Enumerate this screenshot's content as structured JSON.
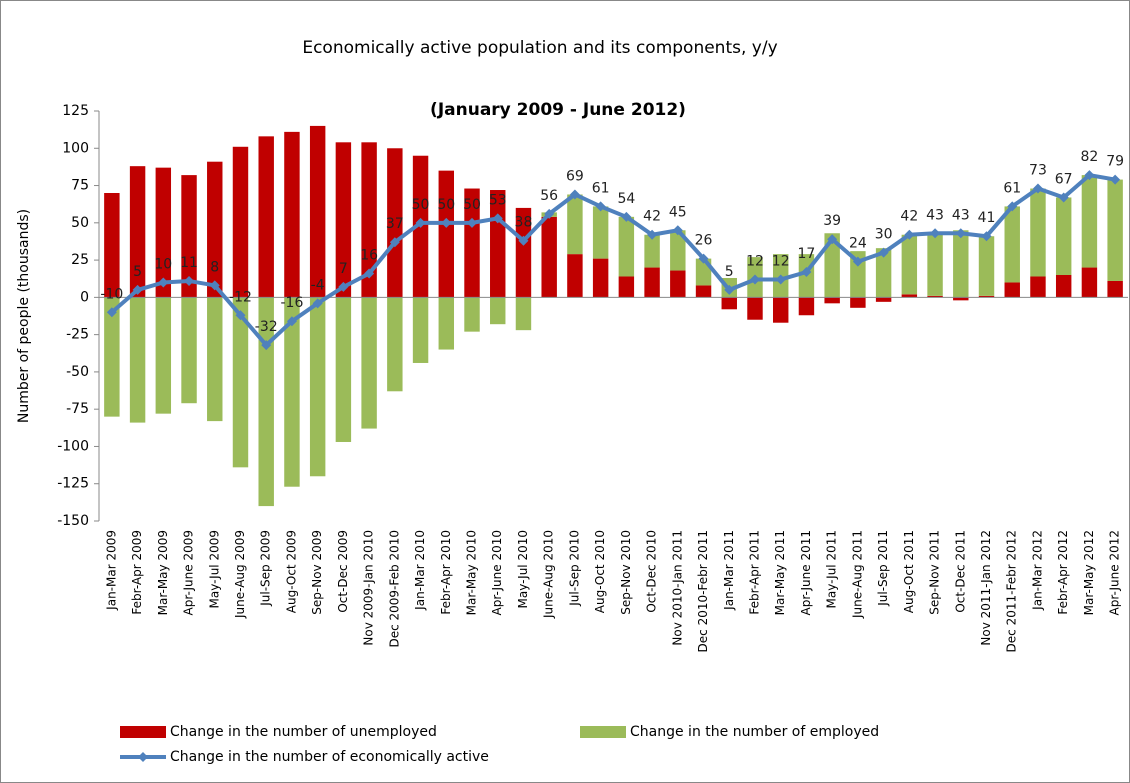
{
  "chart_data": {
    "type": "combo",
    "title": "Economically active population and its components, y/y",
    "subtitle": "(January 2009 - June 2012)",
    "y_axis_label": "Number of people (thousands)",
    "categories": [
      "Jan-Mar 2009",
      "Febr-Apr 2009",
      "Mar-May 2009",
      "Apr-June 2009",
      "May-Jul 2009",
      "June-Aug 2009",
      "Jul-Sep 2009",
      "Aug-Oct 2009",
      "Sep-Nov 2009",
      "Oct-Dec 2009",
      "Nov 2009-Jan 2010",
      "Dec 2009-Feb 2010",
      "Jan-Mar 2010",
      "Febr-Apr 2010",
      "Mar-May 2010",
      "Apr-June 2010",
      "May-Jul 2010",
      "June-Aug 2010",
      "Jul-Sep 2010",
      "Aug-Oct 2010",
      "Sep-Nov 2010",
      "Oct-Dec 2010",
      "Nov 2010-Jan 2011",
      "Dec 2010-Febr 2011",
      "Jan-Mar 2011",
      "Febr-Apr 2011",
      "Mar-May 2011",
      "Apr-June 2011",
      "May-Jul 2011",
      "June-Aug 2011",
      "Jul-Sep 2011",
      "Aug-Oct 2011",
      "Sep-Nov 2011",
      "Oct-Dec 2011",
      "Nov 2011-Jan 2012",
      "Dec 2011-Febr 2012",
      "Jan-Mar 2012",
      "Febr-Apr 2012",
      "Mar-May 2012",
      "Apr-June 2012"
    ],
    "series": [
      {
        "name": "Change in the number of unemployed",
        "kind": "bar",
        "color": "#c00000",
        "values": [
          70,
          88,
          87,
          82,
          91,
          101,
          108,
          111,
          115,
          104,
          104,
          100,
          95,
          85,
          73,
          72,
          60,
          54,
          29,
          26,
          14,
          20,
          18,
          8,
          -8,
          -15,
          -17,
          -12,
          -4,
          -7,
          -3,
          2,
          1,
          -2,
          1,
          10,
          14,
          15,
          20,
          11
        ]
      },
      {
        "name": "Change in the number of employed",
        "kind": "bar",
        "color": "#9bbb59",
        "values": [
          -80,
          -84,
          -78,
          -71,
          -83,
          -114,
          -140,
          -127,
          -120,
          -97,
          -88,
          -63,
          -44,
          -35,
          -23,
          -18,
          -22,
          3,
          40,
          35,
          40,
          22,
          27,
          18,
          13,
          27,
          29,
          29,
          43,
          31,
          33,
          40,
          42,
          45,
          40,
          51,
          59,
          52,
          62,
          68
        ]
      },
      {
        "name": "Change in the number of economically active",
        "kind": "line",
        "color": "#4f81bd",
        "values": [
          -10,
          5,
          10,
          11,
          8,
          -12,
          -32,
          -16,
          -4,
          7,
          16,
          37,
          50,
          50,
          50,
          53,
          38,
          56,
          69,
          61,
          54,
          42,
          45,
          26,
          5,
          12,
          12,
          17,
          39,
          24,
          30,
          42,
          43,
          43,
          41,
          61,
          73,
          67,
          82,
          79
        ]
      }
    ],
    "ylim": [
      -150,
      125
    ],
    "yticks": [
      -150,
      -125,
      -100,
      -75,
      -50,
      -25,
      0,
      25,
      50,
      75,
      100,
      125
    ],
    "grid": false,
    "legend": "bottom"
  }
}
